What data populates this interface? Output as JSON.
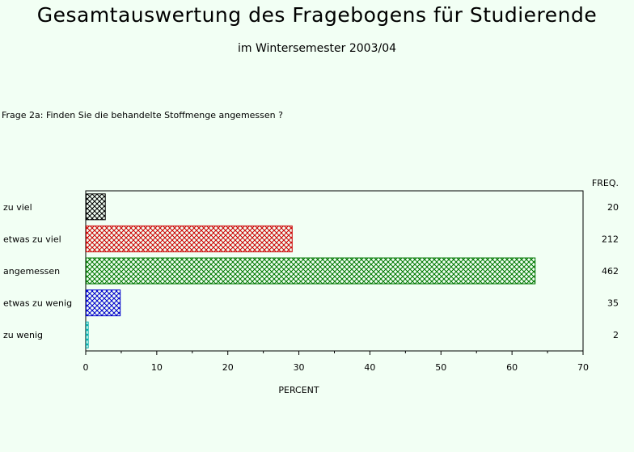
{
  "header": {
    "title": "Gesamtauswertung des Fragebogens für Studierende",
    "subtitle": "im Wintersemester 2003/04",
    "question": "Frage 2a: Finden Sie die behandelte Stoffmenge angemessen ?"
  },
  "chart_data": {
    "type": "bar",
    "orientation": "horizontal",
    "categories": [
      "zu viel",
      "etwas zu viel",
      "angemessen",
      "etwas zu wenig",
      "zu wenig"
    ],
    "values": [
      2.7,
      29.0,
      63.2,
      4.8,
      0.3
    ],
    "freq": [
      "20",
      "212",
      "462",
      "35",
      "2"
    ],
    "freq_label": "FREQ.",
    "xlabel": "PERCENT",
    "xlim": [
      0,
      70
    ],
    "xticks": [
      "0",
      "10",
      "20",
      "30",
      "40",
      "50",
      "60",
      "70"
    ],
    "colors": [
      "#000000",
      "#cc0000",
      "#007700",
      "#0000cc",
      "#00aaaa"
    ],
    "grid": false
  }
}
